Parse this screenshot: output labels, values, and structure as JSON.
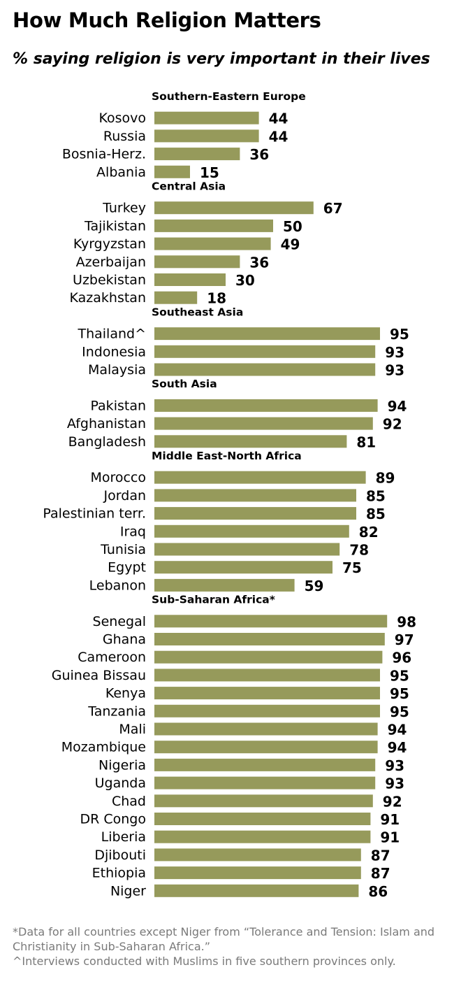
{
  "title": "How Much Religion Matters",
  "subtitle": "% saying religion is very important in their lives",
  "colors": {
    "bar": "#969a5b",
    "text": "#000000",
    "footnote": "#7a7a7a"
  },
  "chart_data": {
    "type": "bar",
    "orientation": "horizontal",
    "xlim": [
      0,
      100
    ],
    "groups": [
      {
        "name": "Southern-Eastern Europe",
        "categories": [
          "Kosovo",
          "Russia",
          "Bosnia-Herz.",
          "Albania"
        ],
        "values": [
          44,
          44,
          36,
          15
        ]
      },
      {
        "name": "Central Asia",
        "categories": [
          "Turkey",
          "Tajikistan",
          "Kyrgyzstan",
          "Azerbaijan",
          "Uzbekistan",
          "Kazakhstan"
        ],
        "values": [
          67,
          50,
          49,
          36,
          30,
          18
        ]
      },
      {
        "name": "Southeast Asia",
        "categories": [
          "Thailand^",
          "Indonesia",
          "Malaysia"
        ],
        "values": [
          95,
          93,
          93
        ]
      },
      {
        "name": "South Asia",
        "categories": [
          "Pakistan",
          "Afghanistan",
          "Bangladesh"
        ],
        "values": [
          94,
          92,
          81
        ]
      },
      {
        "name": "Middle East-North Africa",
        "categories": [
          "Morocco",
          "Jordan",
          "Palestinian terr.",
          "Iraq",
          "Tunisia",
          "Egypt",
          "Lebanon"
        ],
        "values": [
          89,
          85,
          85,
          82,
          78,
          75,
          59
        ]
      },
      {
        "name": "Sub-Saharan Africa*",
        "categories": [
          "Senegal",
          "Ghana",
          "Cameroon",
          "Guinea Bissau",
          "Kenya",
          "Tanzania",
          "Mali",
          "Mozambique",
          "Nigeria",
          "Uganda",
          "Chad",
          "DR Congo",
          "Liberia",
          "Djibouti",
          "Ethiopia",
          "Niger"
        ],
        "values": [
          98,
          97,
          96,
          95,
          95,
          95,
          94,
          94,
          93,
          93,
          92,
          91,
          91,
          87,
          87,
          86
        ]
      }
    ]
  },
  "footnotes": [
    "*Data for all countries except Niger from “Tolerance and Tension: Islam and Christianity in Sub-Saharan Africa.”",
    "^Interviews conducted with Muslims in five southern provinces only."
  ]
}
